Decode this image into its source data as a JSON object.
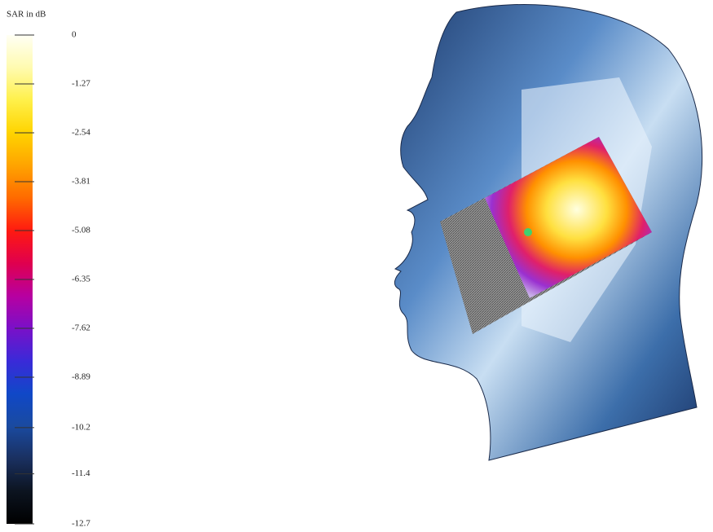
{
  "chart_data": {
    "type": "colorbar",
    "title": "SAR in dB",
    "ylim": [
      -12.7,
      0
    ],
    "yticks": [
      0,
      -1.27,
      -2.54,
      -3.81,
      -5.08,
      -6.35,
      -7.62,
      -8.89,
      -10.2,
      -11.4,
      -12.7
    ],
    "colormap": [
      "#fffff4",
      "#fffbb0",
      "#fff04a",
      "#ffd400",
      "#ffa400",
      "#ff6a00",
      "#ff1a10",
      "#e0004e",
      "#b800a0",
      "#7a10c8",
      "#3a2ad8",
      "#1048c8",
      "#1a4aa0",
      "#1a3060",
      "#0c1420",
      "#000000"
    ]
  }
}
